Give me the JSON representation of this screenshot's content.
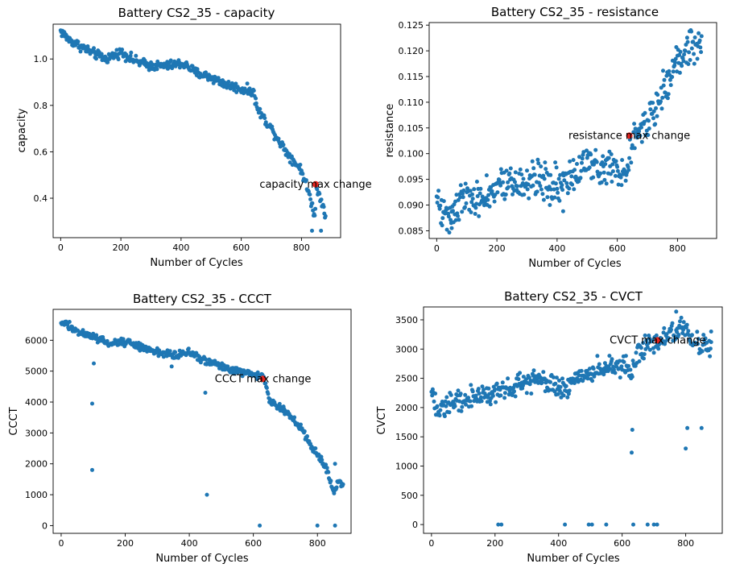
{
  "chart_data": [
    {
      "type": "scatter",
      "title": "Battery CS2_35 - capacity",
      "xlabel": "Number of Cycles",
      "ylabel": "capacity",
      "xlim": [
        -25,
        930
      ],
      "ylim": [
        0.23,
        1.15
      ],
      "xticks": [
        0,
        200,
        400,
        600,
        800
      ],
      "yticks": [
        0.4,
        0.6,
        0.8,
        1.0
      ],
      "ytick_labels": [
        "0.4",
        "0.6",
        "0.8",
        "1.0"
      ],
      "annotation": {
        "text": "capacity max change",
        "x": 847,
        "y": 0.46
      },
      "trend": [
        [
          0,
          1.12
        ],
        [
          30,
          1.08
        ],
        [
          60,
          1.06
        ],
        [
          100,
          1.03
        ],
        [
          150,
          1.0
        ],
        [
          200,
          1.03
        ],
        [
          250,
          0.99
        ],
        [
          300,
          0.97
        ],
        [
          350,
          0.97
        ],
        [
          400,
          0.98
        ],
        [
          420,
          0.97
        ],
        [
          450,
          0.94
        ],
        [
          500,
          0.92
        ],
        [
          550,
          0.89
        ],
        [
          600,
          0.87
        ],
        [
          640,
          0.86
        ],
        [
          655,
          0.78
        ],
        [
          700,
          0.7
        ],
        [
          750,
          0.6
        ],
        [
          800,
          0.52
        ],
        [
          825,
          0.42
        ],
        [
          845,
          0.32
        ],
        [
          848,
          0.45
        ],
        [
          870,
          0.38
        ],
        [
          880,
          0.32
        ]
      ],
      "noise": 0.01,
      "outliers": [
        [
          835,
          0.26
        ],
        [
          865,
          0.26
        ]
      ]
    },
    {
      "type": "scatter",
      "title": "Battery CS2_35 - resistance",
      "xlabel": "Number of Cycles",
      "ylabel": "resistance",
      "xlim": [
        -25,
        930
      ],
      "ylim": [
        0.0835,
        0.1255
      ],
      "xticks": [
        0,
        200,
        400,
        600,
        800
      ],
      "yticks": [
        0.085,
        0.09,
        0.095,
        0.1,
        0.105,
        0.11,
        0.115,
        0.12,
        0.125
      ],
      "ytick_labels": [
        "0.085",
        "0.090",
        "0.095",
        "0.100",
        "0.105",
        "0.110",
        "0.115",
        "0.120",
        "0.125"
      ],
      "annotation": {
        "text": "resistance max change",
        "x": 640,
        "y": 0.1035
      },
      "trend": [
        [
          0,
          0.092
        ],
        [
          20,
          0.088
        ],
        [
          50,
          0.089
        ],
        [
          100,
          0.092
        ],
        [
          150,
          0.091
        ],
        [
          200,
          0.093
        ],
        [
          250,
          0.094
        ],
        [
          300,
          0.095
        ],
        [
          350,
          0.095
        ],
        [
          400,
          0.094
        ],
        [
          450,
          0.095
        ],
        [
          500,
          0.098
        ],
        [
          550,
          0.098
        ],
        [
          600,
          0.097
        ],
        [
          630,
          0.097
        ],
        [
          650,
          0.103
        ],
        [
          700,
          0.106
        ],
        [
          750,
          0.112
        ],
        [
          800,
          0.118
        ],
        [
          840,
          0.121
        ],
        [
          880,
          0.122
        ]
      ],
      "noise": 0.0018,
      "outliers": [
        [
          50,
          0.0855
        ],
        [
          420,
          0.0888
        ]
      ]
    },
    {
      "type": "scatter",
      "title": "Battery CS2_35 - CCCT",
      "xlabel": "Number of Cycles",
      "ylabel": "CCCT",
      "xlim": [
        -25,
        905
      ],
      "ylim": [
        -250,
        7000
      ],
      "xticks": [
        0,
        200,
        400,
        600,
        800
      ],
      "yticks": [
        0,
        1000,
        2000,
        3000,
        4000,
        5000,
        6000
      ],
      "ytick_labels": [
        "0",
        "1000",
        "2000",
        "3000",
        "4000",
        "5000",
        "6000"
      ],
      "annotation": {
        "text": "CCCT max change",
        "x": 630,
        "y": 4750
      },
      "trend": [
        [
          0,
          6600
        ],
        [
          50,
          6300
        ],
        [
          100,
          6100
        ],
        [
          150,
          5900
        ],
        [
          200,
          5950
        ],
        [
          250,
          5800
        ],
        [
          300,
          5600
        ],
        [
          350,
          5550
        ],
        [
          400,
          5600
        ],
        [
          450,
          5350
        ],
        [
          500,
          5150
        ],
        [
          550,
          5000
        ],
        [
          600,
          4900
        ],
        [
          630,
          4850
        ],
        [
          650,
          4100
        ],
        [
          700,
          3700
        ],
        [
          750,
          3100
        ],
        [
          800,
          2300
        ],
        [
          830,
          1800
        ],
        [
          850,
          1100
        ],
        [
          870,
          1500
        ],
        [
          880,
          1300
        ]
      ],
      "noise": 60,
      "outliers": [
        [
          97,
          3950
        ],
        [
          97,
          1800
        ],
        [
          102,
          5250
        ],
        [
          345,
          5150
        ],
        [
          450,
          4300
        ],
        [
          455,
          1000
        ],
        [
          620,
          0
        ],
        [
          800,
          0
        ],
        [
          855,
          0
        ],
        [
          855,
          2000
        ]
      ]
    },
    {
      "type": "scatter",
      "title": "Battery CS2_35 - CVCT",
      "xlabel": "Number of Cycles",
      "ylabel": "CVCT",
      "xlim": [
        -25,
        915
      ],
      "ylim": [
        -150,
        3720
      ],
      "xticks": [
        0,
        200,
        400,
        600,
        800
      ],
      "yticks": [
        0,
        500,
        1000,
        1500,
        2000,
        2500,
        3000,
        3500
      ],
      "ytick_labels": [
        "0",
        "500",
        "1000",
        "1500",
        "2000",
        "2500",
        "3000",
        "3500"
      ],
      "annotation": {
        "text": "CVCT max change",
        "x": 712,
        "y": 3150
      },
      "trend": [
        [
          0,
          2200
        ],
        [
          20,
          1950
        ],
        [
          60,
          2050
        ],
        [
          100,
          2150
        ],
        [
          150,
          2200
        ],
        [
          200,
          2250
        ],
        [
          250,
          2350
        ],
        [
          300,
          2450
        ],
        [
          350,
          2500
        ],
        [
          400,
          2350
        ],
        [
          430,
          2300
        ],
        [
          450,
          2550
        ],
        [
          500,
          2600
        ],
        [
          550,
          2700
        ],
        [
          600,
          2700
        ],
        [
          630,
          2650
        ],
        [
          650,
          2950
        ],
        [
          700,
          3100
        ],
        [
          750,
          3250
        ],
        [
          800,
          3400
        ],
        [
          820,
          3150
        ],
        [
          850,
          3100
        ],
        [
          880,
          3050
        ]
      ],
      "noise": 90,
      "outliers": [
        [
          210,
          0
        ],
        [
          220,
          0
        ],
        [
          420,
          0
        ],
        [
          495,
          0
        ],
        [
          505,
          0
        ],
        [
          550,
          0
        ],
        [
          630,
          1230
        ],
        [
          632,
          1620
        ],
        [
          635,
          0
        ],
        [
          680,
          0
        ],
        [
          700,
          0
        ],
        [
          710,
          0
        ],
        [
          800,
          1300
        ],
        [
          805,
          1650
        ],
        [
          850,
          1650
        ],
        [
          880,
          3300
        ],
        [
          770,
          3640
        ]
      ]
    }
  ]
}
